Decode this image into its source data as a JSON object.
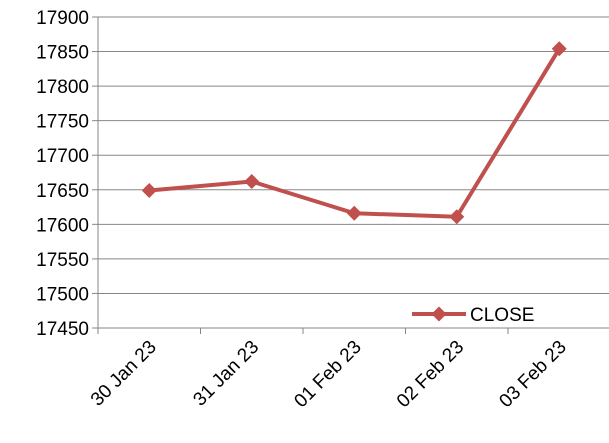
{
  "chart_data": {
    "type": "line",
    "title": "",
    "xlabel": "",
    "ylabel": "",
    "categories": [
      "30 Jan 23",
      "31 Jan 23",
      "01 Feb 23",
      "02 Feb 23",
      "03 Feb 23"
    ],
    "series": [
      {
        "name": "CLOSE",
        "values": [
          17649,
          17662,
          17616,
          17611,
          17854
        ],
        "color": "#c0504d",
        "marker": "diamond"
      }
    ],
    "ylim": [
      17450,
      17900
    ],
    "yticks": [
      17450,
      17500,
      17550,
      17600,
      17650,
      17700,
      17750,
      17800,
      17850,
      17900
    ],
    "grid": "horizontal",
    "legend": "bottom-right",
    "colors": {
      "series": "#c0504d",
      "grid": "#878787",
      "axis": "#878787"
    }
  }
}
